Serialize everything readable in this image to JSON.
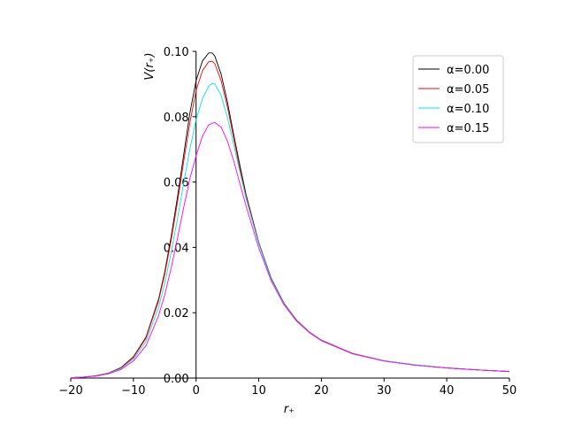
{
  "chart_data": {
    "type": "line",
    "xlabel": "r₊",
    "ylabel": "V(r₊)",
    "xlim": [
      -20,
      50
    ],
    "ylim": [
      0,
      0.1
    ],
    "xticks": [
      -20,
      -10,
      0,
      10,
      20,
      30,
      40,
      50
    ],
    "yticks": [
      0.0,
      0.02,
      0.04,
      0.06,
      0.08,
      0.1
    ],
    "xtick_labels": [
      "−20",
      "−10",
      "0",
      "10",
      "20",
      "30",
      "40",
      "50"
    ],
    "ytick_labels": [
      "0.00",
      "0.02",
      "0.04",
      "0.06",
      "0.08",
      "0.10"
    ],
    "grid": false,
    "legend_position": "top-right",
    "x": [
      -20,
      -18,
      -16,
      -14,
      -12,
      -10,
      -8,
      -6,
      -5,
      -4,
      -3,
      -2,
      -1,
      0,
      1,
      2,
      2.6,
      3,
      4,
      5,
      6,
      7,
      8,
      10,
      12,
      14,
      16,
      18,
      20,
      25,
      30,
      35,
      40,
      45,
      50
    ],
    "series": [
      {
        "name": "α=0.00",
        "color": "#000000",
        "values": [
          0.0001,
          0.0003,
          0.0007,
          0.0015,
          0.0032,
          0.0065,
          0.0125,
          0.024,
          0.0325,
          0.043,
          0.055,
          0.068,
          0.081,
          0.091,
          0.097,
          0.0995,
          0.0995,
          0.0985,
          0.093,
          0.0845,
          0.0745,
          0.065,
          0.056,
          0.0415,
          0.0305,
          0.023,
          0.0178,
          0.0142,
          0.0116,
          0.0075,
          0.0053,
          0.004,
          0.0031,
          0.0025,
          0.002
        ]
      },
      {
        "name": "α=0.05",
        "color": "#ff0000",
        "values": [
          0.0001,
          0.0003,
          0.0007,
          0.0015,
          0.0031,
          0.0063,
          0.0122,
          0.0235,
          0.0318,
          0.042,
          0.0535,
          0.066,
          0.078,
          0.088,
          0.094,
          0.0968,
          0.097,
          0.0962,
          0.091,
          0.083,
          0.0735,
          0.064,
          0.0555,
          0.0413,
          0.0303,
          0.0229,
          0.0177,
          0.0142,
          0.0116,
          0.0075,
          0.0053,
          0.004,
          0.0031,
          0.0025,
          0.002
        ]
      },
      {
        "name": "α=0.10",
        "color": "#00e5e5",
        "values": [
          0.0001,
          0.0003,
          0.0006,
          0.0014,
          0.0029,
          0.0058,
          0.0112,
          0.0215,
          0.029,
          0.0382,
          0.0485,
          0.0595,
          0.07,
          0.079,
          0.0855,
          0.0893,
          0.0902,
          0.09,
          0.0865,
          0.0798,
          0.0715,
          0.063,
          0.0548,
          0.041,
          0.0302,
          0.0228,
          0.0176,
          0.0141,
          0.0115,
          0.0074,
          0.0053,
          0.004,
          0.0031,
          0.0025,
          0.002
        ]
      },
      {
        "name": "α=0.15",
        "color": "#ff00ff",
        "values": [
          0.0001,
          0.0003,
          0.0006,
          0.0013,
          0.0026,
          0.0052,
          0.0099,
          0.019,
          0.0255,
          0.0335,
          0.0425,
          0.052,
          0.061,
          0.068,
          0.074,
          0.0775,
          0.078,
          0.0782,
          0.0768,
          0.0725,
          0.0665,
          0.0595,
          0.0525,
          0.0398,
          0.0297,
          0.0225,
          0.0175,
          0.014,
          0.0114,
          0.0074,
          0.0052,
          0.0039,
          0.0031,
          0.0025,
          0.002
        ]
      }
    ]
  }
}
